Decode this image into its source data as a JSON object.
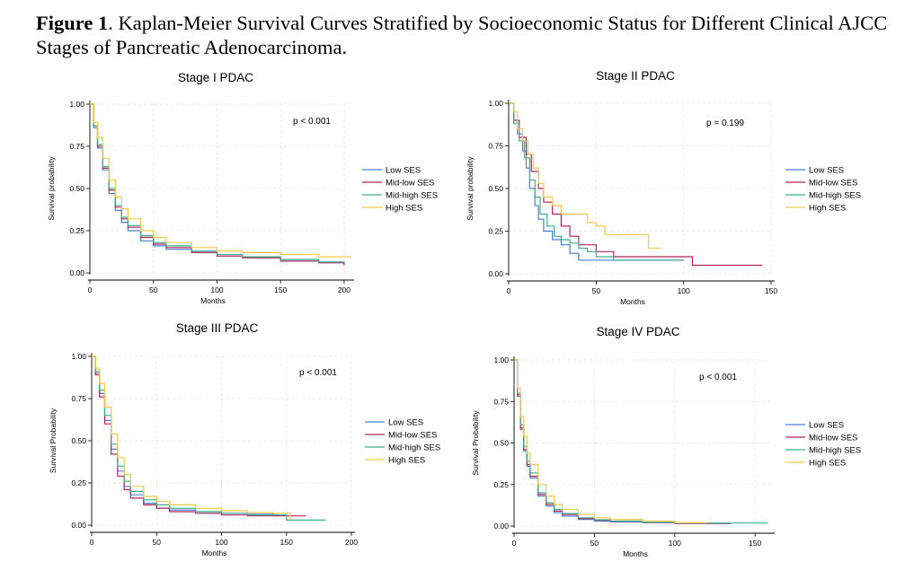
{
  "figure": {
    "label": "Figure 1",
    "caption": ". Kaplan-Meier Survival Curves Stratified by Socioeconomic Status for Different Clinical AJCC Stages of Pancreatic Adenocarcinoma."
  },
  "colors": {
    "Low SES": "#4a7fd4",
    "Mid-low SES": "#b0245a",
    "Mid-high SES": "#3fae8c",
    "High SES": "#f2c94c"
  },
  "chart_data": [
    {
      "type": "line",
      "step": true,
      "title": "Stage I PDAC",
      "xlabel": "Months",
      "ylabel": "Survival probability",
      "xlim": [
        0,
        205
      ],
      "ylim": [
        0,
        1
      ],
      "xticks": [
        0,
        50,
        100,
        150,
        200
      ],
      "yticks": [
        "0.00",
        "0.25",
        "0.50",
        "0.75",
        "1.00"
      ],
      "annotation": "p < 0.001",
      "legend_position": "right",
      "grid": true,
      "series": [
        {
          "name": "Low SES",
          "x": [
            0,
            3,
            6,
            10,
            15,
            20,
            25,
            30,
            40,
            50,
            60,
            80,
            100,
            120,
            150,
            180,
            200
          ],
          "y": [
            1.0,
            0.86,
            0.74,
            0.61,
            0.47,
            0.37,
            0.3,
            0.25,
            0.19,
            0.16,
            0.14,
            0.12,
            0.1,
            0.09,
            0.07,
            0.06,
            0.05
          ]
        },
        {
          "name": "Mid-low SES",
          "x": [
            0,
            3,
            6,
            10,
            15,
            20,
            25,
            30,
            40,
            50,
            60,
            80,
            100,
            120,
            150,
            180,
            200
          ],
          "y": [
            1.0,
            0.87,
            0.75,
            0.62,
            0.49,
            0.39,
            0.32,
            0.27,
            0.21,
            0.17,
            0.15,
            0.12,
            0.1,
            0.09,
            0.07,
            0.06,
            0.045
          ]
        },
        {
          "name": "Mid-high SES",
          "x": [
            0,
            3,
            6,
            10,
            15,
            20,
            25,
            30,
            40,
            50,
            60,
            80,
            100,
            120,
            150,
            180,
            200
          ],
          "y": [
            1.0,
            0.87,
            0.76,
            0.63,
            0.5,
            0.4,
            0.33,
            0.28,
            0.22,
            0.18,
            0.16,
            0.13,
            0.11,
            0.095,
            0.08,
            0.065,
            0.06
          ]
        },
        {
          "name": "High SES",
          "x": [
            0,
            3,
            6,
            10,
            15,
            20,
            25,
            30,
            40,
            50,
            60,
            80,
            100,
            120,
            150,
            180,
            205
          ],
          "y": [
            1.0,
            0.89,
            0.8,
            0.68,
            0.55,
            0.45,
            0.38,
            0.32,
            0.25,
            0.21,
            0.18,
            0.15,
            0.13,
            0.12,
            0.11,
            0.095,
            0.085
          ]
        }
      ]
    },
    {
      "type": "line",
      "step": true,
      "title": "Stage II PDAC",
      "xlabel": "Months",
      "ylabel": "Survival probability",
      "xlim": [
        0,
        150
      ],
      "ylim": [
        0,
        1
      ],
      "xticks": [
        0,
        50,
        100,
        150
      ],
      "yticks": [
        "0.00",
        "0.25",
        "0.50",
        "0.75",
        "1.00"
      ],
      "annotation": "p = 0.199",
      "legend_position": "right",
      "grid": true,
      "series": [
        {
          "name": "Low SES",
          "x": [
            0,
            3,
            5,
            8,
            10,
            12,
            15,
            17,
            20,
            25,
            30,
            35,
            40,
            55,
            100
          ],
          "y": [
            1.0,
            0.9,
            0.82,
            0.72,
            0.62,
            0.5,
            0.4,
            0.32,
            0.25,
            0.2,
            0.17,
            0.12,
            0.08,
            0.08,
            0.08
          ]
        },
        {
          "name": "Mid-low SES",
          "x": [
            0,
            3,
            6,
            10,
            13,
            17,
            20,
            25,
            30,
            35,
            40,
            50,
            60,
            100,
            105,
            145
          ],
          "y": [
            1.0,
            0.9,
            0.8,
            0.7,
            0.6,
            0.5,
            0.42,
            0.35,
            0.28,
            0.22,
            0.17,
            0.13,
            0.1,
            0.1,
            0.05,
            0.05
          ]
        },
        {
          "name": "Mid-high SES",
          "x": [
            0,
            3,
            6,
            9,
            12,
            15,
            18,
            22,
            26,
            30,
            35,
            40,
            45,
            50,
            60,
            100
          ],
          "y": [
            1.0,
            0.88,
            0.78,
            0.68,
            0.55,
            0.45,
            0.35,
            0.28,
            0.22,
            0.2,
            0.18,
            0.15,
            0.13,
            0.1,
            0.08,
            0.08
          ]
        },
        {
          "name": "High SES",
          "x": [
            0,
            3,
            5,
            8,
            11,
            14,
            17,
            20,
            25,
            30,
            40,
            45,
            50,
            55,
            75,
            80,
            87
          ],
          "y": [
            1.0,
            0.95,
            0.85,
            0.78,
            0.7,
            0.62,
            0.53,
            0.45,
            0.4,
            0.35,
            0.35,
            0.3,
            0.28,
            0.23,
            0.23,
            0.15,
            0.15
          ]
        }
      ]
    },
    {
      "type": "line",
      "step": true,
      "title": "Stage III PDAC",
      "xlabel": "Months",
      "ylabel": "Survival Probability",
      "xlim": [
        0,
        200
      ],
      "ylim": [
        0,
        1
      ],
      "xticks": [
        0,
        50,
        100,
        150,
        200
      ],
      "yticks": [
        "0.00",
        "0.25",
        "0.50",
        "0.75",
        "1.00"
      ],
      "annotation": "p < 0.001",
      "legend_position": "right",
      "grid": true,
      "series": [
        {
          "name": "Low SES",
          "x": [
            0,
            3,
            6,
            10,
            15,
            20,
            25,
            30,
            40,
            50,
            60,
            80,
            100,
            120,
            140,
            150
          ],
          "y": [
            1.0,
            0.9,
            0.78,
            0.62,
            0.45,
            0.32,
            0.23,
            0.18,
            0.13,
            0.1,
            0.09,
            0.08,
            0.07,
            0.065,
            0.06,
            0.06
          ]
        },
        {
          "name": "Mid-low SES",
          "x": [
            0,
            3,
            6,
            10,
            15,
            20,
            25,
            30,
            40,
            50,
            60,
            80,
            100,
            120,
            150,
            165
          ],
          "y": [
            1.0,
            0.89,
            0.76,
            0.6,
            0.42,
            0.29,
            0.21,
            0.16,
            0.12,
            0.1,
            0.08,
            0.07,
            0.06,
            0.055,
            0.055,
            0.055
          ]
        },
        {
          "name": "Mid-high SES",
          "x": [
            0,
            3,
            6,
            10,
            15,
            20,
            25,
            30,
            40,
            50,
            60,
            80,
            100,
            120,
            150,
            180
          ],
          "y": [
            1.0,
            0.91,
            0.8,
            0.65,
            0.48,
            0.35,
            0.26,
            0.2,
            0.15,
            0.12,
            0.1,
            0.08,
            0.07,
            0.06,
            0.03,
            0.03
          ]
        },
        {
          "name": "High SES",
          "x": [
            0,
            3,
            6,
            10,
            15,
            20,
            25,
            30,
            40,
            50,
            60,
            80,
            100,
            120,
            140,
            153
          ],
          "y": [
            1.0,
            0.93,
            0.84,
            0.7,
            0.54,
            0.4,
            0.3,
            0.23,
            0.17,
            0.14,
            0.12,
            0.1,
            0.085,
            0.075,
            0.07,
            0.03
          ]
        }
      ]
    },
    {
      "type": "line",
      "step": true,
      "title": "Stage IV PDAC",
      "xlabel": "Months",
      "ylabel": "Survival Probability",
      "xlim": [
        0,
        160
      ],
      "ylim": [
        0,
        1
      ],
      "xticks": [
        0,
        50,
        100,
        150
      ],
      "yticks": [
        "0.00",
        "0.25",
        "0.50",
        "0.75",
        "1.00"
      ],
      "annotation": "p < 0.001",
      "legend_position": "right",
      "grid": true,
      "series": [
        {
          "name": "Low SES",
          "x": [
            0,
            2,
            4,
            6,
            8,
            10,
            15,
            20,
            25,
            30,
            40,
            50,
            60,
            80,
            100,
            135
          ],
          "y": [
            1.0,
            0.78,
            0.58,
            0.45,
            0.36,
            0.29,
            0.18,
            0.12,
            0.08,
            0.06,
            0.04,
            0.03,
            0.025,
            0.02,
            0.015,
            0.015
          ]
        },
        {
          "name": "Mid-low SES",
          "x": [
            0,
            2,
            4,
            6,
            8,
            10,
            15,
            20,
            25,
            30,
            40,
            50,
            60,
            80,
            100,
            135
          ],
          "y": [
            1.0,
            0.79,
            0.59,
            0.46,
            0.37,
            0.3,
            0.19,
            0.13,
            0.09,
            0.07,
            0.045,
            0.035,
            0.028,
            0.02,
            0.015,
            0.015
          ]
        },
        {
          "name": "Mid-high SES",
          "x": [
            0,
            2,
            4,
            6,
            8,
            10,
            15,
            20,
            25,
            30,
            40,
            50,
            60,
            80,
            100,
            158
          ],
          "y": [
            1.0,
            0.8,
            0.61,
            0.48,
            0.39,
            0.32,
            0.2,
            0.14,
            0.1,
            0.075,
            0.05,
            0.038,
            0.03,
            0.022,
            0.018,
            0.018
          ]
        },
        {
          "name": "High SES",
          "x": [
            0,
            2,
            4,
            6,
            8,
            10,
            15,
            20,
            25,
            30,
            40,
            50,
            60,
            80,
            100,
            120
          ],
          "y": [
            1.0,
            0.83,
            0.66,
            0.54,
            0.44,
            0.37,
            0.25,
            0.18,
            0.13,
            0.1,
            0.07,
            0.05,
            0.04,
            0.03,
            0.02,
            0.02
          ]
        }
      ]
    }
  ]
}
